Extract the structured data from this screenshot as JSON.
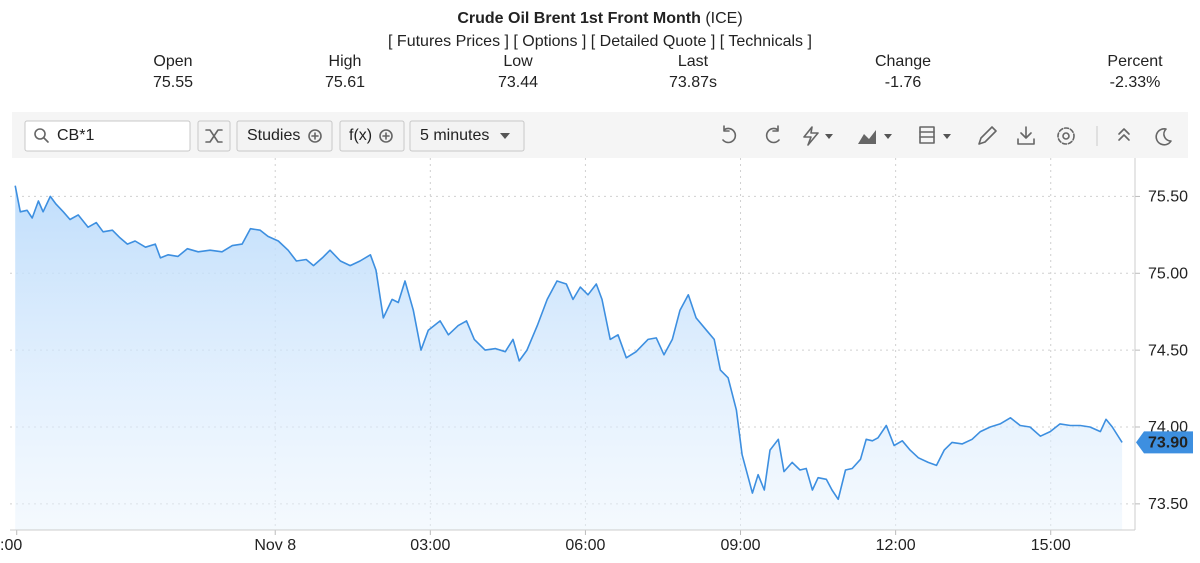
{
  "header": {
    "title": "Crude Oil Brent 1st Front Month",
    "exchange": "(ICE)",
    "links": [
      "[ Futures Prices ]",
      "[ Options ]",
      "[ Detailed Quote ]",
      "[ Technicals ]"
    ]
  },
  "stats": [
    {
      "label": "Open",
      "value": "75.55"
    },
    {
      "label": "High",
      "value": "75.61"
    },
    {
      "label": "Low",
      "value": "73.44"
    },
    {
      "label": "Last",
      "value": "73.87s"
    },
    {
      "label": "Change",
      "value": "-1.76"
    },
    {
      "label": "Percent",
      "value": "-2.33%"
    }
  ],
  "toolbar": {
    "search": "CB*1",
    "buttons": [
      "Studies",
      "f(x)",
      "5 minutes"
    ]
  },
  "chart_data": {
    "type": "line",
    "color": "#3d8fe0",
    "x": [
      -5.03,
      -4.93,
      -4.8,
      -4.7,
      -4.58,
      -4.49,
      -4.35,
      -4.24,
      -4.1,
      -3.97,
      -3.81,
      -3.62,
      -3.46,
      -3.33,
      -3.15,
      -3.0,
      -2.86,
      -2.71,
      -2.51,
      -2.32,
      -2.22,
      -2.07,
      -1.88,
      -1.7,
      -1.49,
      -1.26,
      -1.03,
      -0.83,
      -0.64,
      -0.48,
      -0.29,
      -0.14,
      0.06,
      0.25,
      0.41,
      0.6,
      0.74,
      0.91,
      1.06,
      1.26,
      1.45,
      1.64,
      1.84,
      1.95,
      2.09,
      2.26,
      2.38,
      2.51,
      2.67,
      2.82,
      2.96,
      3.19,
      3.35,
      3.54,
      3.7,
      3.85,
      4.06,
      4.26,
      4.45,
      4.6,
      4.72,
      4.87,
      5.07,
      5.26,
      5.45,
      5.63,
      5.76,
      5.9,
      6.05,
      6.21,
      6.32,
      6.48,
      6.63,
      6.79,
      6.98,
      7.21,
      7.37,
      7.52,
      7.68,
      7.83,
      7.99,
      8.14,
      8.34,
      8.49,
      8.61,
      8.76,
      8.92,
      9.03,
      9.15,
      9.23,
      9.34,
      9.46,
      9.57,
      9.73,
      9.84,
      10.0,
      10.15,
      10.27,
      10.39,
      10.5,
      10.66,
      10.77,
      10.89,
      11.03,
      11.16,
      11.32,
      11.43,
      11.55,
      11.66,
      11.82,
      11.97,
      12.13,
      12.28,
      12.44,
      12.63,
      12.79,
      12.94,
      13.09,
      13.29,
      13.48,
      13.64,
      13.83,
      14.02,
      14.22,
      14.41,
      14.6,
      14.8,
      14.99,
      15.18,
      15.38,
      15.57,
      15.76,
      15.96,
      16.07,
      16.19,
      16.38
    ],
    "values": [
      75.57,
      75.4,
      75.41,
      75.36,
      75.47,
      75.4,
      75.5,
      75.45,
      75.4,
      75.35,
      75.38,
      75.3,
      75.33,
      75.27,
      75.28,
      75.23,
      75.19,
      75.21,
      75.17,
      75.19,
      75.1,
      75.12,
      75.11,
      75.16,
      75.14,
      75.15,
      75.14,
      75.18,
      75.19,
      75.29,
      75.28,
      75.24,
      75.21,
      75.15,
      75.08,
      75.09,
      75.05,
      75.1,
      75.15,
      75.08,
      75.05,
      75.08,
      75.12,
      75.02,
      74.71,
      74.83,
      74.81,
      74.95,
      74.76,
      74.5,
      74.63,
      74.69,
      74.6,
      74.66,
      74.69,
      74.57,
      74.5,
      74.51,
      74.49,
      74.57,
      74.43,
      74.5,
      74.66,
      74.83,
      74.95,
      74.93,
      74.83,
      74.91,
      74.86,
      74.93,
      74.83,
      74.57,
      74.6,
      74.45,
      74.49,
      74.57,
      74.58,
      74.47,
      74.57,
      74.76,
      74.86,
      74.71,
      74.63,
      74.57,
      74.37,
      74.32,
      74.11,
      73.82,
      73.67,
      73.57,
      73.69,
      73.59,
      73.85,
      73.92,
      73.71,
      73.77,
      73.72,
      73.73,
      73.59,
      73.67,
      73.66,
      73.59,
      73.53,
      73.72,
      73.73,
      73.79,
      73.92,
      73.91,
      73.93,
      74.01,
      73.88,
      73.91,
      73.85,
      73.8,
      73.77,
      73.75,
      73.85,
      73.9,
      73.89,
      73.92,
      73.97,
      74.0,
      74.02,
      74.06,
      74.01,
      74.0,
      73.94,
      73.97,
      74.02,
      74.01,
      74.01,
      74.0,
      73.97,
      74.05,
      74.0,
      73.9
    ],
    "xlim": [
      -5.13,
      16.63
    ],
    "xticks": [
      {
        "value": -5,
        "label": ":00"
      },
      {
        "value": 0,
        "label": "Nov 8"
      },
      {
        "value": 3,
        "label": "03:00"
      },
      {
        "value": 6,
        "label": "06:00"
      },
      {
        "value": 9,
        "label": "09:00"
      },
      {
        "value": 12,
        "label": "12:00"
      },
      {
        "value": 15,
        "label": "15:00"
      }
    ],
    "ylim": [
      73.33,
      75.75
    ],
    "yticks": [
      {
        "value": 73.5,
        "label": "73.50"
      },
      {
        "value": 74,
        "label": "74.00"
      },
      {
        "value": 74.5,
        "label": "74.50"
      },
      {
        "value": 75,
        "label": "75.00"
      },
      {
        "value": 75.5,
        "label": "75.50"
      }
    ],
    "grid": true,
    "last_marker": {
      "value": 73.9,
      "label": "73.90"
    }
  }
}
